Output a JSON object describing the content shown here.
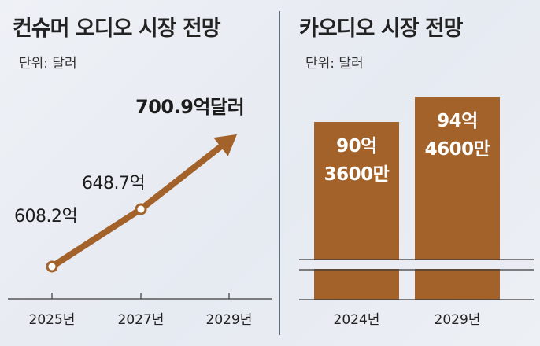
{
  "colors": {
    "accent": "#a3622a",
    "axis": "#3a3a3a",
    "bar_text": "#ffffff",
    "break_line": "#8e9aa8"
  },
  "chart_data": [
    {
      "type": "line",
      "title": "컨슈머 오디오 시장 전망",
      "unit_label": "단위: 달러",
      "x": [
        "2025년",
        "2027년",
        "2029년"
      ],
      "series": [
        {
          "values": [
            608.2,
            648.7,
            700.9
          ]
        }
      ],
      "data_labels": [
        "608.2억",
        "648.7억",
        "700.9억달러"
      ],
      "arrow_at_end": true,
      "grid": false
    },
    {
      "type": "bar",
      "title": "카오디오 시장 전망",
      "unit_label": "단위: 달러",
      "categories": [
        "2024년",
        "2029년"
      ],
      "values": [
        9036,
        9446
      ],
      "value_unit": "백만 달러",
      "data_labels": [
        [
          "90억",
          "3600만"
        ],
        [
          "94억",
          "4600만"
        ]
      ],
      "axis_break": true,
      "grid": false
    }
  ]
}
